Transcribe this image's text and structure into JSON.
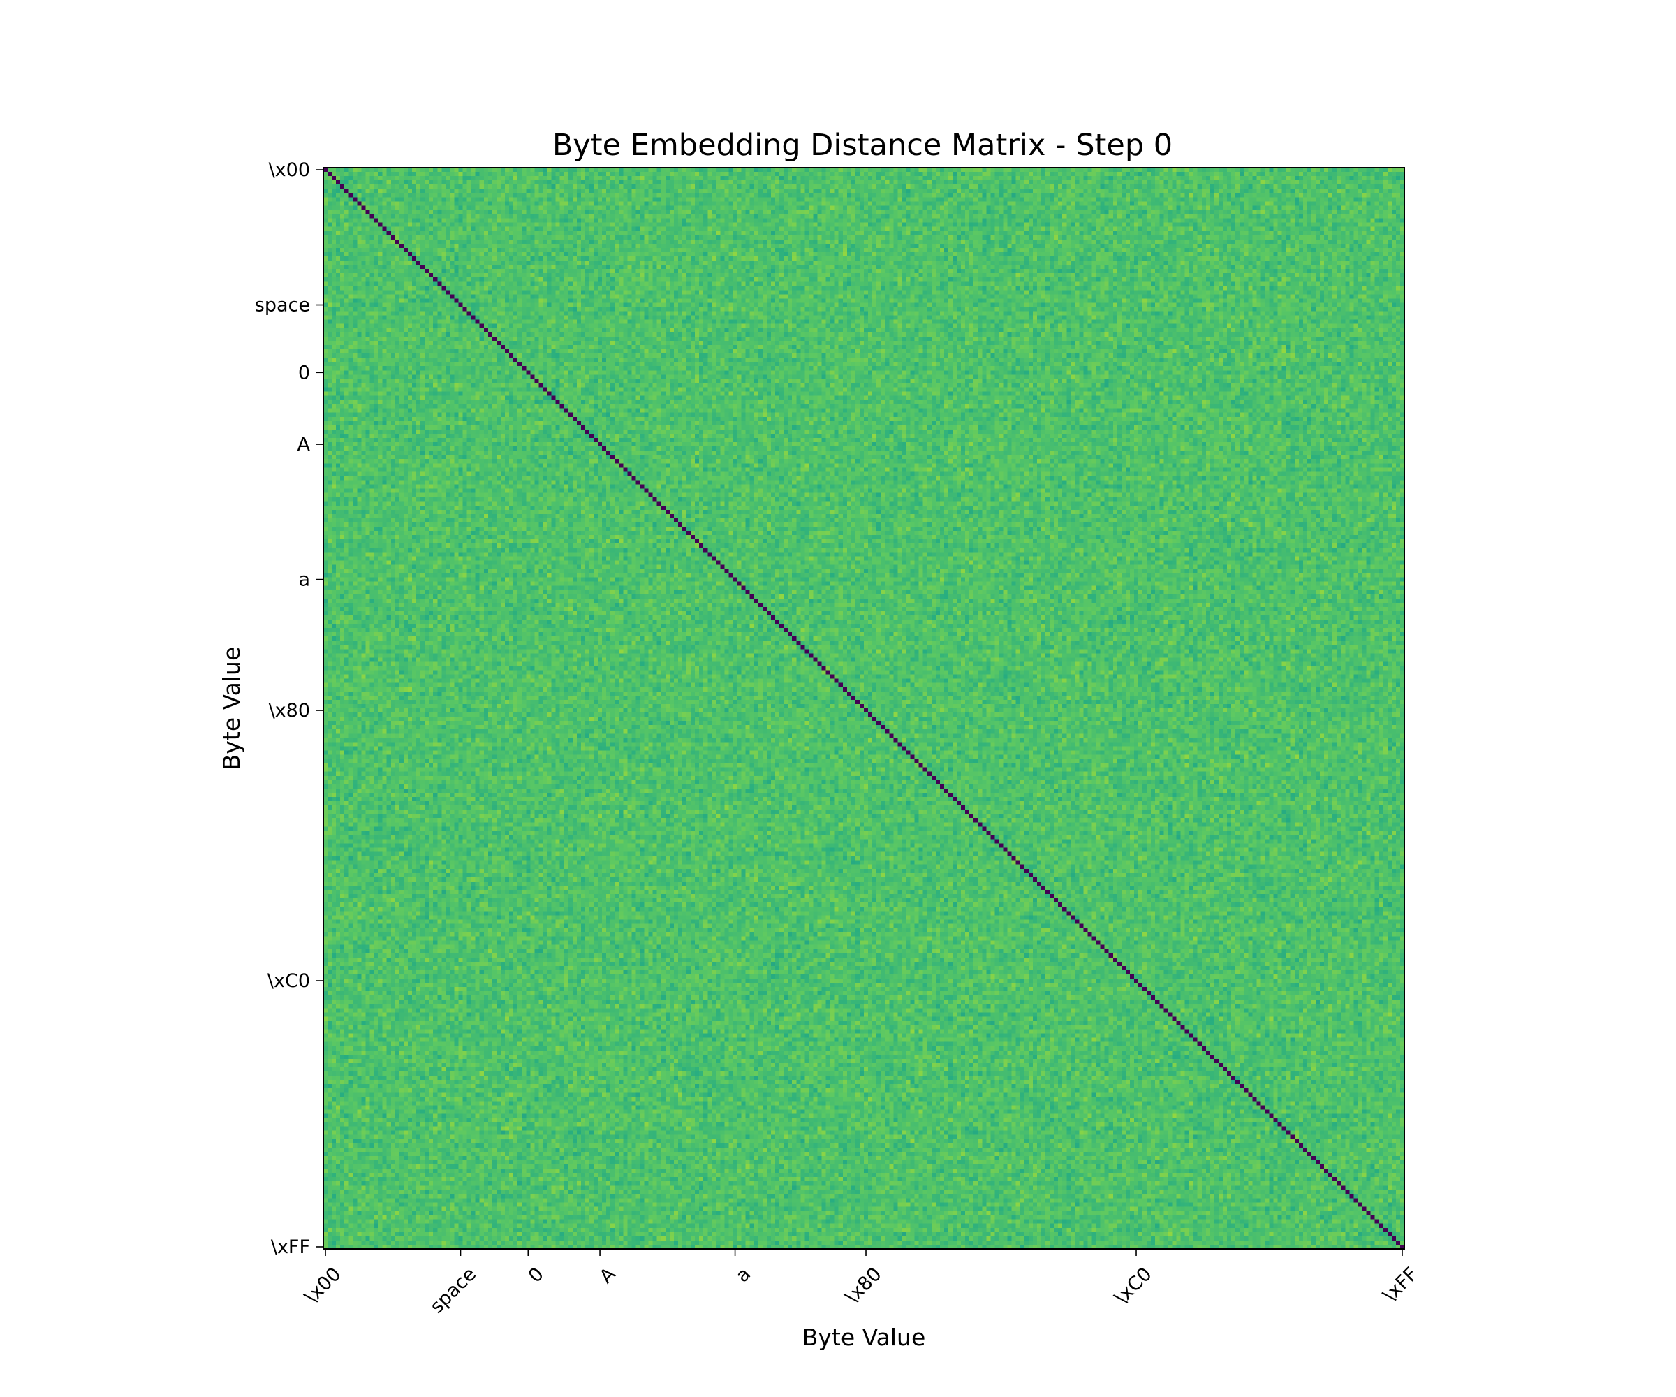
{
  "chart_data": {
    "type": "heatmap",
    "title": "Byte Embedding Distance Matrix - Step 0",
    "xlabel": "Byte Value",
    "ylabel": "Byte Value",
    "rows": 256,
    "cols": 256,
    "x_range": [
      0,
      255
    ],
    "y_range": [
      0,
      255
    ],
    "y_inverted": true,
    "colormap": "viridis",
    "colorbar": false,
    "grid": false,
    "diagonal_value": 0.0,
    "off_diagonal_mean": 0.72,
    "off_diagonal_spread": 0.08,
    "value_range": [
      0.0,
      1.0
    ],
    "ticks": [
      {
        "value": 0,
        "label": "\\x00"
      },
      {
        "value": 32,
        "label": "space"
      },
      {
        "value": 48,
        "label": "0"
      },
      {
        "value": 65,
        "label": "A"
      },
      {
        "value": 97,
        "label": "a"
      },
      {
        "value": 128,
        "label": "\\x80"
      },
      {
        "value": 192,
        "label": "\\xC0"
      },
      {
        "value": 255,
        "label": "\\xFF"
      }
    ],
    "x_tick_rotation": -45
  }
}
